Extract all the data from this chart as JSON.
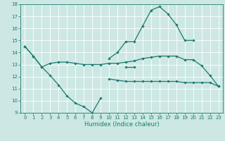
{
  "xlabel": "Humidex (Indice chaleur)",
  "xlim": [
    -0.5,
    23.5
  ],
  "ylim": [
    9,
    18
  ],
  "yticks": [
    9,
    10,
    11,
    12,
    13,
    14,
    15,
    16,
    17,
    18
  ],
  "xticks": [
    0,
    1,
    2,
    3,
    4,
    5,
    6,
    7,
    8,
    9,
    10,
    11,
    12,
    13,
    14,
    15,
    16,
    17,
    18,
    19,
    20,
    21,
    22,
    23
  ],
  "background_color": "#cde8e4",
  "grid_color": "#ffffff",
  "line_color": "#1a7a6e",
  "line1_y": [
    14.5,
    13.7,
    12.8,
    12.1,
    11.3,
    10.4,
    9.8,
    9.5,
    9.0,
    10.2,
    null,
    null,
    12.8,
    12.8,
    null,
    null,
    null,
    null,
    null,
    null,
    null,
    null,
    null,
    null
  ],
  "line2_y": [
    14.5,
    13.7,
    12.8,
    13.1,
    13.2,
    13.2,
    13.1,
    13.0,
    13.0,
    13.0,
    13.1,
    13.1,
    13.2,
    13.3,
    13.5,
    13.6,
    13.7,
    13.7,
    13.7,
    13.4,
    13.4,
    12.9,
    12.1,
    11.2
  ],
  "line3_y": [
    null,
    null,
    null,
    null,
    null,
    null,
    null,
    null,
    null,
    null,
    13.5,
    14.0,
    14.9,
    14.9,
    16.2,
    17.5,
    17.8,
    17.2,
    16.3,
    15.0,
    15.0,
    null,
    null,
    null
  ],
  "line4_y": [
    null,
    null,
    null,
    null,
    null,
    null,
    null,
    null,
    null,
    null,
    11.8,
    11.7,
    11.6,
    11.6,
    11.6,
    11.6,
    11.6,
    11.6,
    11.6,
    11.5,
    11.5,
    11.5,
    11.5,
    11.2
  ],
  "xlabel_fontsize": 6.0,
  "tick_labelsize": 5.0
}
